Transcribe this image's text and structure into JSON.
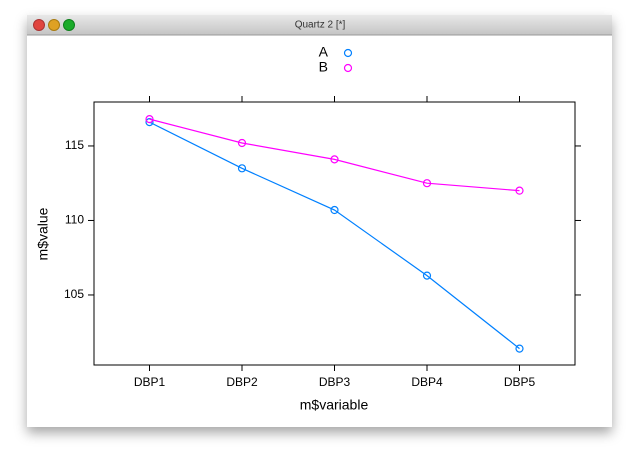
{
  "window_title": "Quartz 2 [*]",
  "chart_data": {
    "type": "line",
    "xlabel": "m$variable",
    "ylabel": "m$value",
    "categories": [
      "DBP1",
      "DBP2",
      "DBP3",
      "DBP4",
      "DBP5"
    ],
    "series": [
      {
        "name": "A",
        "color": "#0080ff",
        "values": [
          116.6,
          113.5,
          110.7,
          106.3,
          101.4
        ]
      },
      {
        "name": "B",
        "color": "#ff00ff",
        "values": [
          116.8,
          115.2,
          114.1,
          112.5,
          112.0
        ]
      }
    ],
    "ylim": [
      100.3,
      117.95
    ],
    "yticks": [
      105,
      110,
      115
    ],
    "legend": "top"
  }
}
